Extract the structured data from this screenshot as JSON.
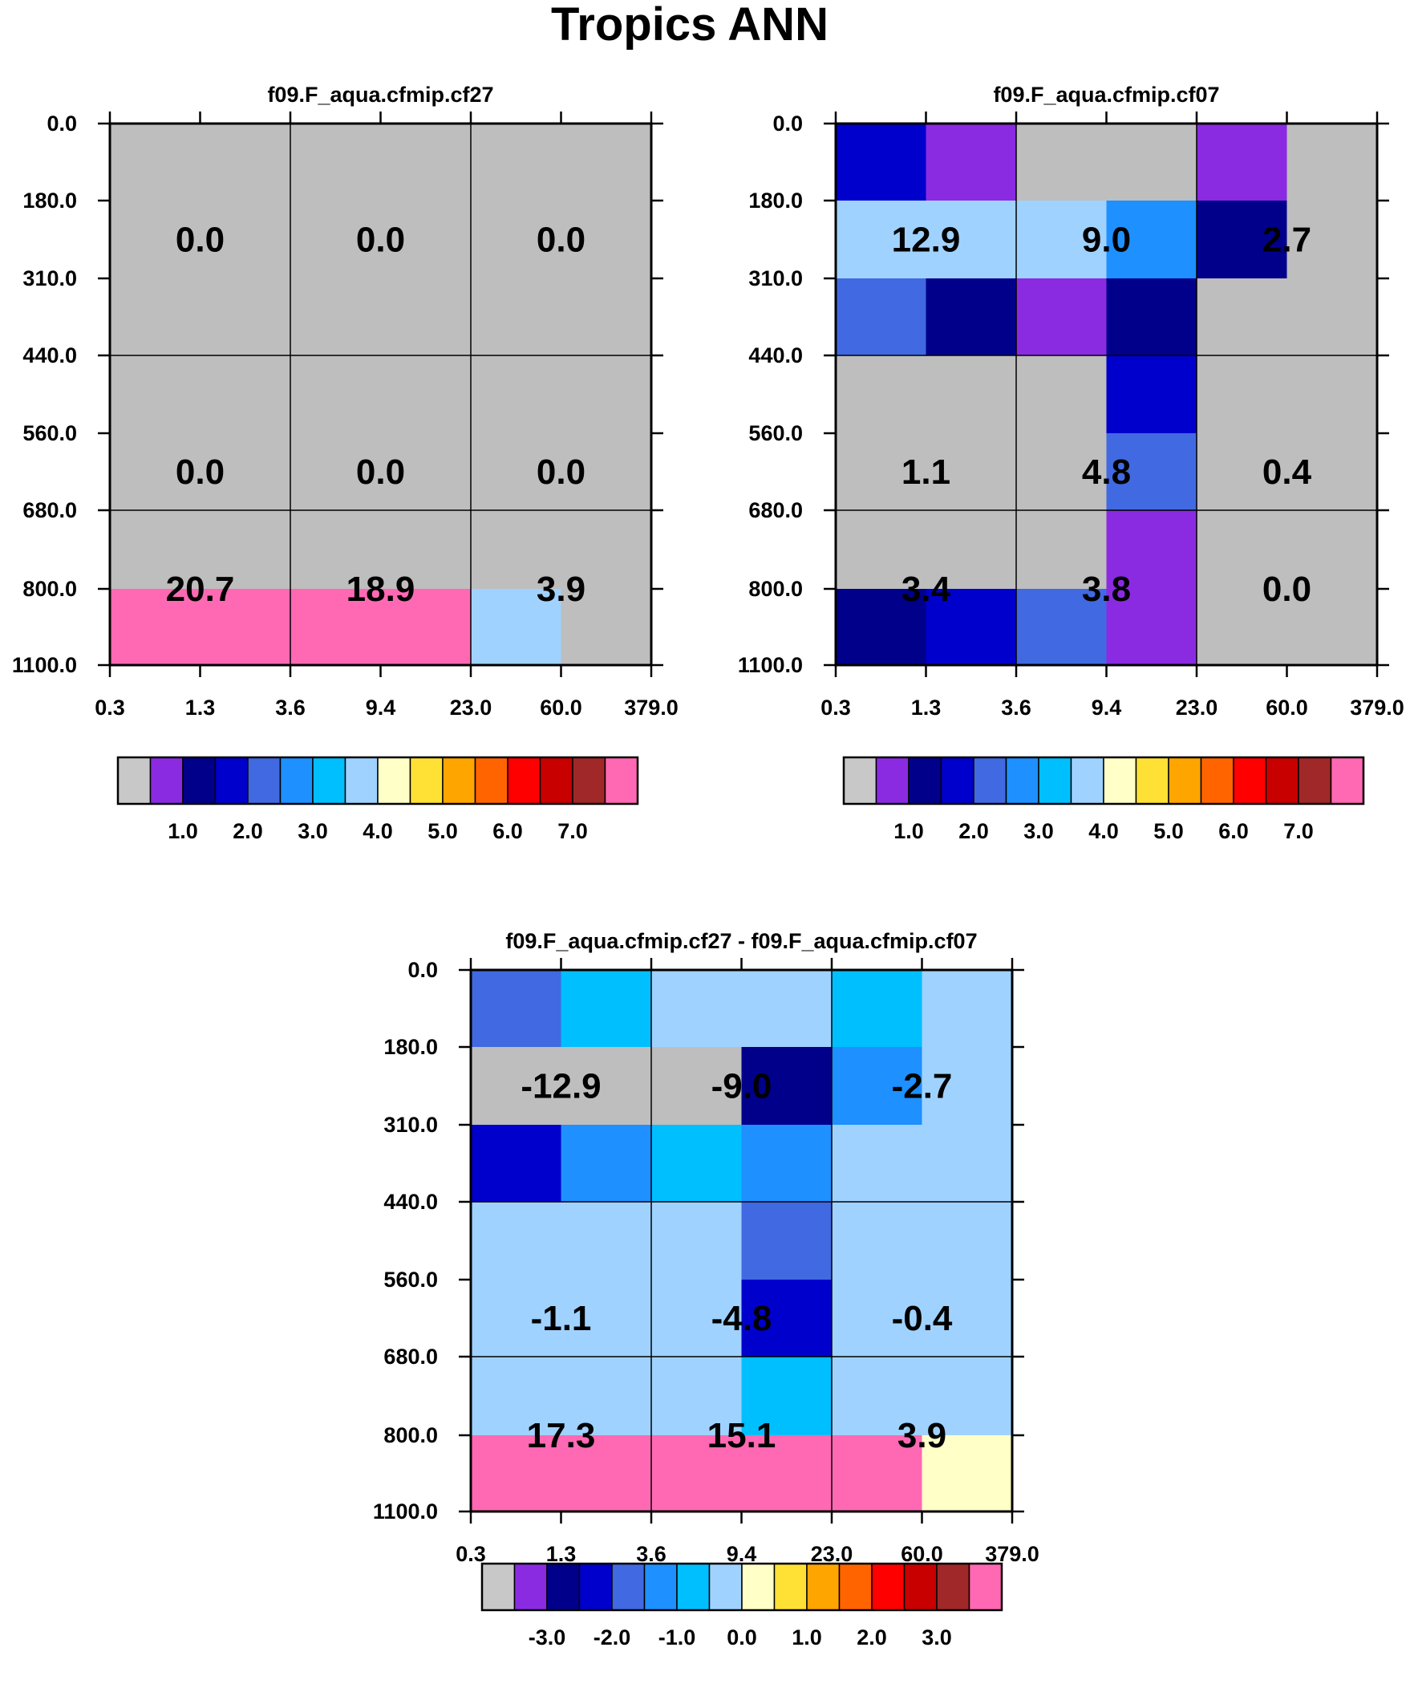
{
  "page_title": "Tropics ANN",
  "chart_data": [
    {
      "type": "heatmap",
      "title": "f09.F_aqua.cfmip.cf27",
      "x_tick_labels": [
        "0.3",
        "1.3",
        "3.6",
        "9.4",
        "23.0",
        "60.0",
        "379.0"
      ],
      "y_tick_labels": [
        "0.0",
        "180.0",
        "310.0",
        "440.0",
        "560.0",
        "680.0",
        "800.0",
        "1100.0"
      ],
      "cell_colors": [
        [
          "#BEBEBE",
          "#BEBEBE",
          "#BEBEBE",
          "#BEBEBE",
          "#BEBEBE",
          "#BEBEBE"
        ],
        [
          "#BEBEBE",
          "#BEBEBE",
          "#BEBEBE",
          "#BEBEBE",
          "#BEBEBE",
          "#BEBEBE"
        ],
        [
          "#BEBEBE",
          "#BEBEBE",
          "#BEBEBE",
          "#BEBEBE",
          "#BEBEBE",
          "#BEBEBE"
        ],
        [
          "#BEBEBE",
          "#BEBEBE",
          "#BEBEBE",
          "#BEBEBE",
          "#BEBEBE",
          "#BEBEBE"
        ],
        [
          "#BEBEBE",
          "#BEBEBE",
          "#BEBEBE",
          "#BEBEBE",
          "#BEBEBE",
          "#BEBEBE"
        ],
        [
          "#BEBEBE",
          "#BEBEBE",
          "#BEBEBE",
          "#BEBEBE",
          "#BEBEBE",
          "#BEBEBE"
        ],
        [
          "#FF69B4",
          "#FF69B4",
          "#FF69B4",
          "#FF69B4",
          "#A0D2FF",
          "#BEBEBE"
        ]
      ],
      "block_values": [
        [
          "0.0",
          "0.0",
          "0.0"
        ],
        [
          "0.0",
          "0.0",
          "0.0"
        ],
        [
          "20.7",
          "18.9",
          "3.9"
        ]
      ],
      "colorbar": {
        "colors": [
          "#C8C8C8",
          "#8A2BE2",
          "#00008B",
          "#0000CD",
          "#4169E1",
          "#1E90FF",
          "#00BFFF",
          "#A0D2FF",
          "#FFFFC8",
          "#FFE135",
          "#FFA500",
          "#FF6400",
          "#FF0000",
          "#C80000",
          "#A02828",
          "#FF69B4"
        ],
        "labels": [
          "1.0",
          "2.0",
          "3.0",
          "4.0",
          "5.0",
          "6.0",
          "7.0"
        ]
      }
    },
    {
      "type": "heatmap",
      "title": "f09.F_aqua.cfmip.cf07",
      "x_tick_labels": [
        "0.3",
        "1.3",
        "3.6",
        "9.4",
        "23.0",
        "60.0",
        "379.0"
      ],
      "y_tick_labels": [
        "0.0",
        "180.0",
        "310.0",
        "440.0",
        "560.0",
        "680.0",
        "800.0",
        "1100.0"
      ],
      "cell_colors": [
        [
          "#0000CD",
          "#8A2BE2",
          "#BEBEBE",
          "#BEBEBE",
          "#8A2BE2",
          "#BEBEBE"
        ],
        [
          "#A0D2FF",
          "#A0D2FF",
          "#A0D2FF",
          "#1E90FF",
          "#00008B",
          "#BEBEBE"
        ],
        [
          "#4169E1",
          "#00008B",
          "#8A2BE2",
          "#00008B",
          "#BEBEBE",
          "#BEBEBE"
        ],
        [
          "#BEBEBE",
          "#BEBEBE",
          "#BEBEBE",
          "#0000CD",
          "#BEBEBE",
          "#BEBEBE"
        ],
        [
          "#BEBEBE",
          "#BEBEBE",
          "#BEBEBE",
          "#4169E1",
          "#BEBEBE",
          "#BEBEBE"
        ],
        [
          "#BEBEBE",
          "#BEBEBE",
          "#BEBEBE",
          "#8A2BE2",
          "#BEBEBE",
          "#BEBEBE"
        ],
        [
          "#00008B",
          "#0000CD",
          "#4169E1",
          "#8A2BE2",
          "#BEBEBE",
          "#BEBEBE"
        ]
      ],
      "block_values": [
        [
          "12.9",
          "9.0",
          "2.7"
        ],
        [
          "1.1",
          "4.8",
          "0.4"
        ],
        [
          "3.4",
          "3.8",
          "0.0"
        ]
      ],
      "colorbar": {
        "colors": [
          "#C8C8C8",
          "#8A2BE2",
          "#00008B",
          "#0000CD",
          "#4169E1",
          "#1E90FF",
          "#00BFFF",
          "#A0D2FF",
          "#FFFFC8",
          "#FFE135",
          "#FFA500",
          "#FF6400",
          "#FF0000",
          "#C80000",
          "#A02828",
          "#FF69B4"
        ],
        "labels": [
          "1.0",
          "2.0",
          "3.0",
          "4.0",
          "5.0",
          "6.0",
          "7.0"
        ]
      }
    },
    {
      "type": "heatmap",
      "title": "f09.F_aqua.cfmip.cf27 - f09.F_aqua.cfmip.cf07",
      "x_tick_labels": [
        "0.3",
        "1.3",
        "3.6",
        "9.4",
        "23.0",
        "60.0",
        "379.0"
      ],
      "y_tick_labels": [
        "0.0",
        "180.0",
        "310.0",
        "440.0",
        "560.0",
        "680.0",
        "800.0",
        "1100.0"
      ],
      "cell_colors": [
        [
          "#4169E1",
          "#00BFFF",
          "#A0D2FF",
          "#A0D2FF",
          "#00BFFF",
          "#A0D2FF"
        ],
        [
          "#BEBEBE",
          "#BEBEBE",
          "#BEBEBE",
          "#00008B",
          "#1E90FF",
          "#A0D2FF"
        ],
        [
          "#0000CD",
          "#1E90FF",
          "#00BFFF",
          "#1E90FF",
          "#A0D2FF",
          "#A0D2FF"
        ],
        [
          "#A0D2FF",
          "#A0D2FF",
          "#A0D2FF",
          "#4169E1",
          "#A0D2FF",
          "#A0D2FF"
        ],
        [
          "#A0D2FF",
          "#A0D2FF",
          "#A0D2FF",
          "#0000CD",
          "#A0D2FF",
          "#A0D2FF"
        ],
        [
          "#A0D2FF",
          "#A0D2FF",
          "#A0D2FF",
          "#00BFFF",
          "#A0D2FF",
          "#A0D2FF"
        ],
        [
          "#FF69B4",
          "#FF69B4",
          "#FF69B4",
          "#FF69B4",
          "#FF69B4",
          "#FFFFC8"
        ]
      ],
      "block_values": [
        [
          "-12.9",
          "-9.0",
          "-2.7"
        ],
        [
          "-1.1",
          "-4.8",
          "-0.4"
        ],
        [
          "17.3",
          "15.1",
          "3.9"
        ]
      ],
      "colorbar": {
        "colors": [
          "#C8C8C8",
          "#8A2BE2",
          "#00008B",
          "#0000CD",
          "#4169E1",
          "#1E90FF",
          "#00BFFF",
          "#A0D2FF",
          "#FFFFC8",
          "#FFE135",
          "#FFA500",
          "#FF6400",
          "#FF0000",
          "#C80000",
          "#A02828",
          "#FF69B4"
        ],
        "labels": [
          "-3.0",
          "-2.0",
          "-1.0",
          "0.0",
          "1.0",
          "2.0",
          "3.0"
        ]
      }
    }
  ]
}
